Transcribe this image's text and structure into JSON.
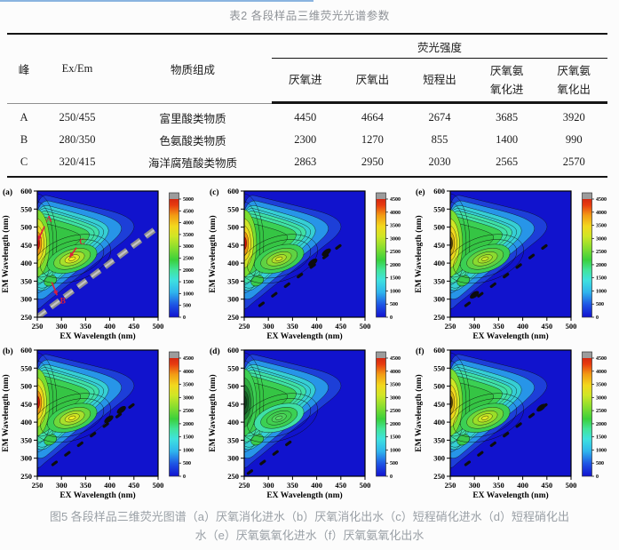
{
  "page": {
    "topline_color": "#8ab4e0"
  },
  "table": {
    "title": "表2 各段样品三维荧光光谱参数",
    "col_headers": {
      "peak": "峰",
      "exem": "Ex/Em",
      "composition": "物质组成",
      "intensity_group": "荧光强度",
      "intensity_cols": [
        "厌氧进",
        "厌氧出",
        "短程出",
        "厌氧氨氧化进",
        "厌氧氨氧化出"
      ]
    },
    "rows": [
      {
        "peak": "A",
        "exem": "250/455",
        "composition": "富里酸类物质",
        "values": [
          "4450",
          "4664",
          "2674",
          "3685",
          "3920"
        ]
      },
      {
        "peak": "B",
        "exem": "280/350",
        "composition": "色氨酸类物质",
        "values": [
          "2300",
          "1270",
          "855",
          "1400",
          "990"
        ]
      },
      {
        "peak": "C",
        "exem": "320/415",
        "composition": "海洋腐殖酸类物质",
        "values": [
          "2863",
          "2950",
          "2030",
          "2565",
          "2570"
        ]
      }
    ]
  },
  "chart_data": {
    "type": "heatmap",
    "subtype": "excitation-emission-matrix contour plots",
    "x": {
      "label": "EX Wavelength (nm)",
      "range": [
        250,
        500
      ],
      "ticks": [
        250,
        300,
        350,
        400,
        450,
        500
      ]
    },
    "y": {
      "label": "EM Wavelength (nm)",
      "range": [
        250,
        600
      ],
      "ticks": [
        250,
        300,
        350,
        400,
        450,
        500,
        550,
        600
      ]
    },
    "colorscale": [
      "#1212d0",
      "#1e54e4",
      "#2fb4ec",
      "#3fe2de",
      "#42e49a",
      "#3ad03c",
      "#8ade2e",
      "#cfe626",
      "#f2d81e",
      "#f29a14",
      "#e83c10",
      "#c01310"
    ],
    "overflow_color": "#9c9c9c",
    "annotation_color": "#dc1e3c",
    "display_order": [
      "a",
      "c",
      "e",
      "b",
      "d",
      "f"
    ],
    "panels": [
      {
        "id": "a",
        "label": "(a)",
        "colorbar_max": 5000,
        "colorbar_step": 500,
        "peaks": [
          {
            "name": "A",
            "ex": 250,
            "em": 455,
            "intensity": 4450
          },
          {
            "name": "B",
            "ex": 277,
            "em": 351,
            "intensity": 2300
          },
          {
            "name": "C",
            "ex": 322,
            "em": 412,
            "intensity": 2863
          }
        ],
        "hot_rings": [
          "#7ade30",
          "#cfe626",
          "#f2d81e",
          "#f09212",
          "#d81408"
        ],
        "hot_core": "#7a0c06",
        "secondary_rings": [
          "#3bd053",
          "#6fd83a",
          "#a8e02c",
          "#dce822",
          "#f2e41e"
        ],
        "diagonal": {
          "style": "gray-thick",
          "from": 250,
          "to": 500
        },
        "scatter_blobs": [],
        "annotations": [
          {
            "text": "A",
            "ex": 268,
            "em": 515,
            "arrow": [
              [
                265,
                502
              ],
              [
                251,
                463
              ]
            ]
          },
          {
            "text": "C",
            "ex": 337,
            "em": 452,
            "arrow": [
              [
                331,
                443
              ],
              [
                317,
                416
              ]
            ]
          },
          {
            "text": "B",
            "ex": 297,
            "em": 288,
            "arrow": [
              [
                280,
                347
              ],
              [
                291,
                311
              ]
            ]
          }
        ]
      },
      {
        "id": "b",
        "label": "(b)",
        "colorbar_max": 4500,
        "colorbar_step": 500,
        "peaks": [
          {
            "name": "A",
            "ex": 250,
            "em": 455,
            "intensity": 4664
          },
          {
            "name": "B",
            "ex": 277,
            "em": 351,
            "intensity": 1270
          },
          {
            "name": "C",
            "ex": 322,
            "em": 412,
            "intensity": 2950
          }
        ],
        "hot_rings": [
          "#7ade30",
          "#cfe626",
          "#f2d81e",
          "#f09212",
          "#d81408"
        ],
        "hot_core": "#a01008",
        "secondary_rings": [
          "#3bd053",
          "#6fd83a",
          "#a8e02c",
          "#d0e424",
          "#ecec20"
        ],
        "diagonal": {
          "style": "black-dash",
          "from": 282,
          "to": 452
        },
        "scatter_blobs": [
          [
            398,
            408
          ],
          [
            424,
            434
          ]
        ],
        "annotations": []
      },
      {
        "id": "c",
        "label": "(c)",
        "colorbar_max": 4500,
        "colorbar_step": 500,
        "peaks": [
          {
            "name": "A",
            "ex": 250,
            "em": 455,
            "intensity": 4600
          },
          {
            "name": "B",
            "ex": 277,
            "em": 351,
            "intensity": 1600
          },
          {
            "name": "C",
            "ex": 322,
            "em": 412,
            "intensity": 2900
          }
        ],
        "hot_rings": [
          "#7ade30",
          "#cfe626",
          "#f2d81e",
          "#f09212",
          "#d81408"
        ],
        "hot_core": "#a01008",
        "secondary_rings": [
          "#3bd053",
          "#5fd242",
          "#8ada30",
          "#b0dc2a",
          "#d0e424"
        ],
        "diagonal": {
          "style": "black-dash",
          "from": 282,
          "to": 452
        },
        "scatter_blobs": [
          [
            392,
            402
          ],
          [
            420,
            430
          ]
        ],
        "annotations": []
      },
      {
        "id": "d",
        "label": "(d)",
        "colorbar_max": 4500,
        "colorbar_step": 500,
        "peaks": [
          {
            "name": "A",
            "ex": 250,
            "em": 455,
            "intensity": 2674
          },
          {
            "name": "B",
            "ex": 277,
            "em": 351,
            "intensity": 855
          },
          {
            "name": "C",
            "ex": 322,
            "em": 412,
            "intensity": 2030
          }
        ],
        "hot_rings": [
          "#3bd053",
          "#2fae40",
          "#1f8232",
          "#166026",
          "#0f441c"
        ],
        "hot_core": "#0a2e12",
        "secondary_rings": [
          "#3fe0a6",
          "#3bd053",
          "#41cf50",
          "#4cd45a",
          "#58da62"
        ],
        "diagonal": {
          "style": "black-dash",
          "from": 258,
          "to": 345
        },
        "scatter_blobs": [],
        "annotations": []
      },
      {
        "id": "e",
        "label": "(e)",
        "colorbar_max": 4500,
        "colorbar_step": 500,
        "peaks": [
          {
            "name": "A",
            "ex": 250,
            "em": 455,
            "intensity": 3685
          },
          {
            "name": "B",
            "ex": 277,
            "em": 351,
            "intensity": 1400
          },
          {
            "name": "C",
            "ex": 322,
            "em": 412,
            "intensity": 2565
          }
        ],
        "hot_rings": [
          "#7ade30",
          "#cfe626",
          "#f2d81e",
          "#d8b814",
          "#554408"
        ],
        "hot_core": "#202014",
        "secondary_rings": [
          "#3bd053",
          "#5fd242",
          "#8ada30",
          "#a8e02c",
          "#c4e626"
        ],
        "diagonal": {
          "style": "black-dash",
          "from": 282,
          "to": 452
        },
        "scatter_blobs": [
          [
            300,
            312
          ]
        ],
        "annotations": []
      },
      {
        "id": "f",
        "label": "(f)",
        "colorbar_max": 4500,
        "colorbar_step": 500,
        "peaks": [
          {
            "name": "A",
            "ex": 250,
            "em": 455,
            "intensity": 3920
          },
          {
            "name": "B",
            "ex": 277,
            "em": 351,
            "intensity": 990
          },
          {
            "name": "C",
            "ex": 322,
            "em": 412,
            "intensity": 2570
          }
        ],
        "hot_rings": [
          "#7ade30",
          "#cfe626",
          "#f2d81e",
          "#d8b814",
          "#554408"
        ],
        "hot_core": "#202014",
        "secondary_rings": [
          "#3bd053",
          "#6fd83a",
          "#9ade28",
          "#c4e626",
          "#e0e822"
        ],
        "diagonal": {
          "style": "black-dash",
          "from": 282,
          "to": 452
        },
        "scatter_blobs": [
          [
            438,
            440
          ]
        ],
        "annotations": []
      }
    ]
  },
  "figure": {
    "caption_lines": [
      "图5 各段样品三维荧光图谱（a）厌氧消化进水（b）厌氧消化出水（c）短程硝化进水（d）短程硝化出",
      "水（e）厌氧氨氧化进水（f）厌氧氨氧化出水"
    ]
  }
}
